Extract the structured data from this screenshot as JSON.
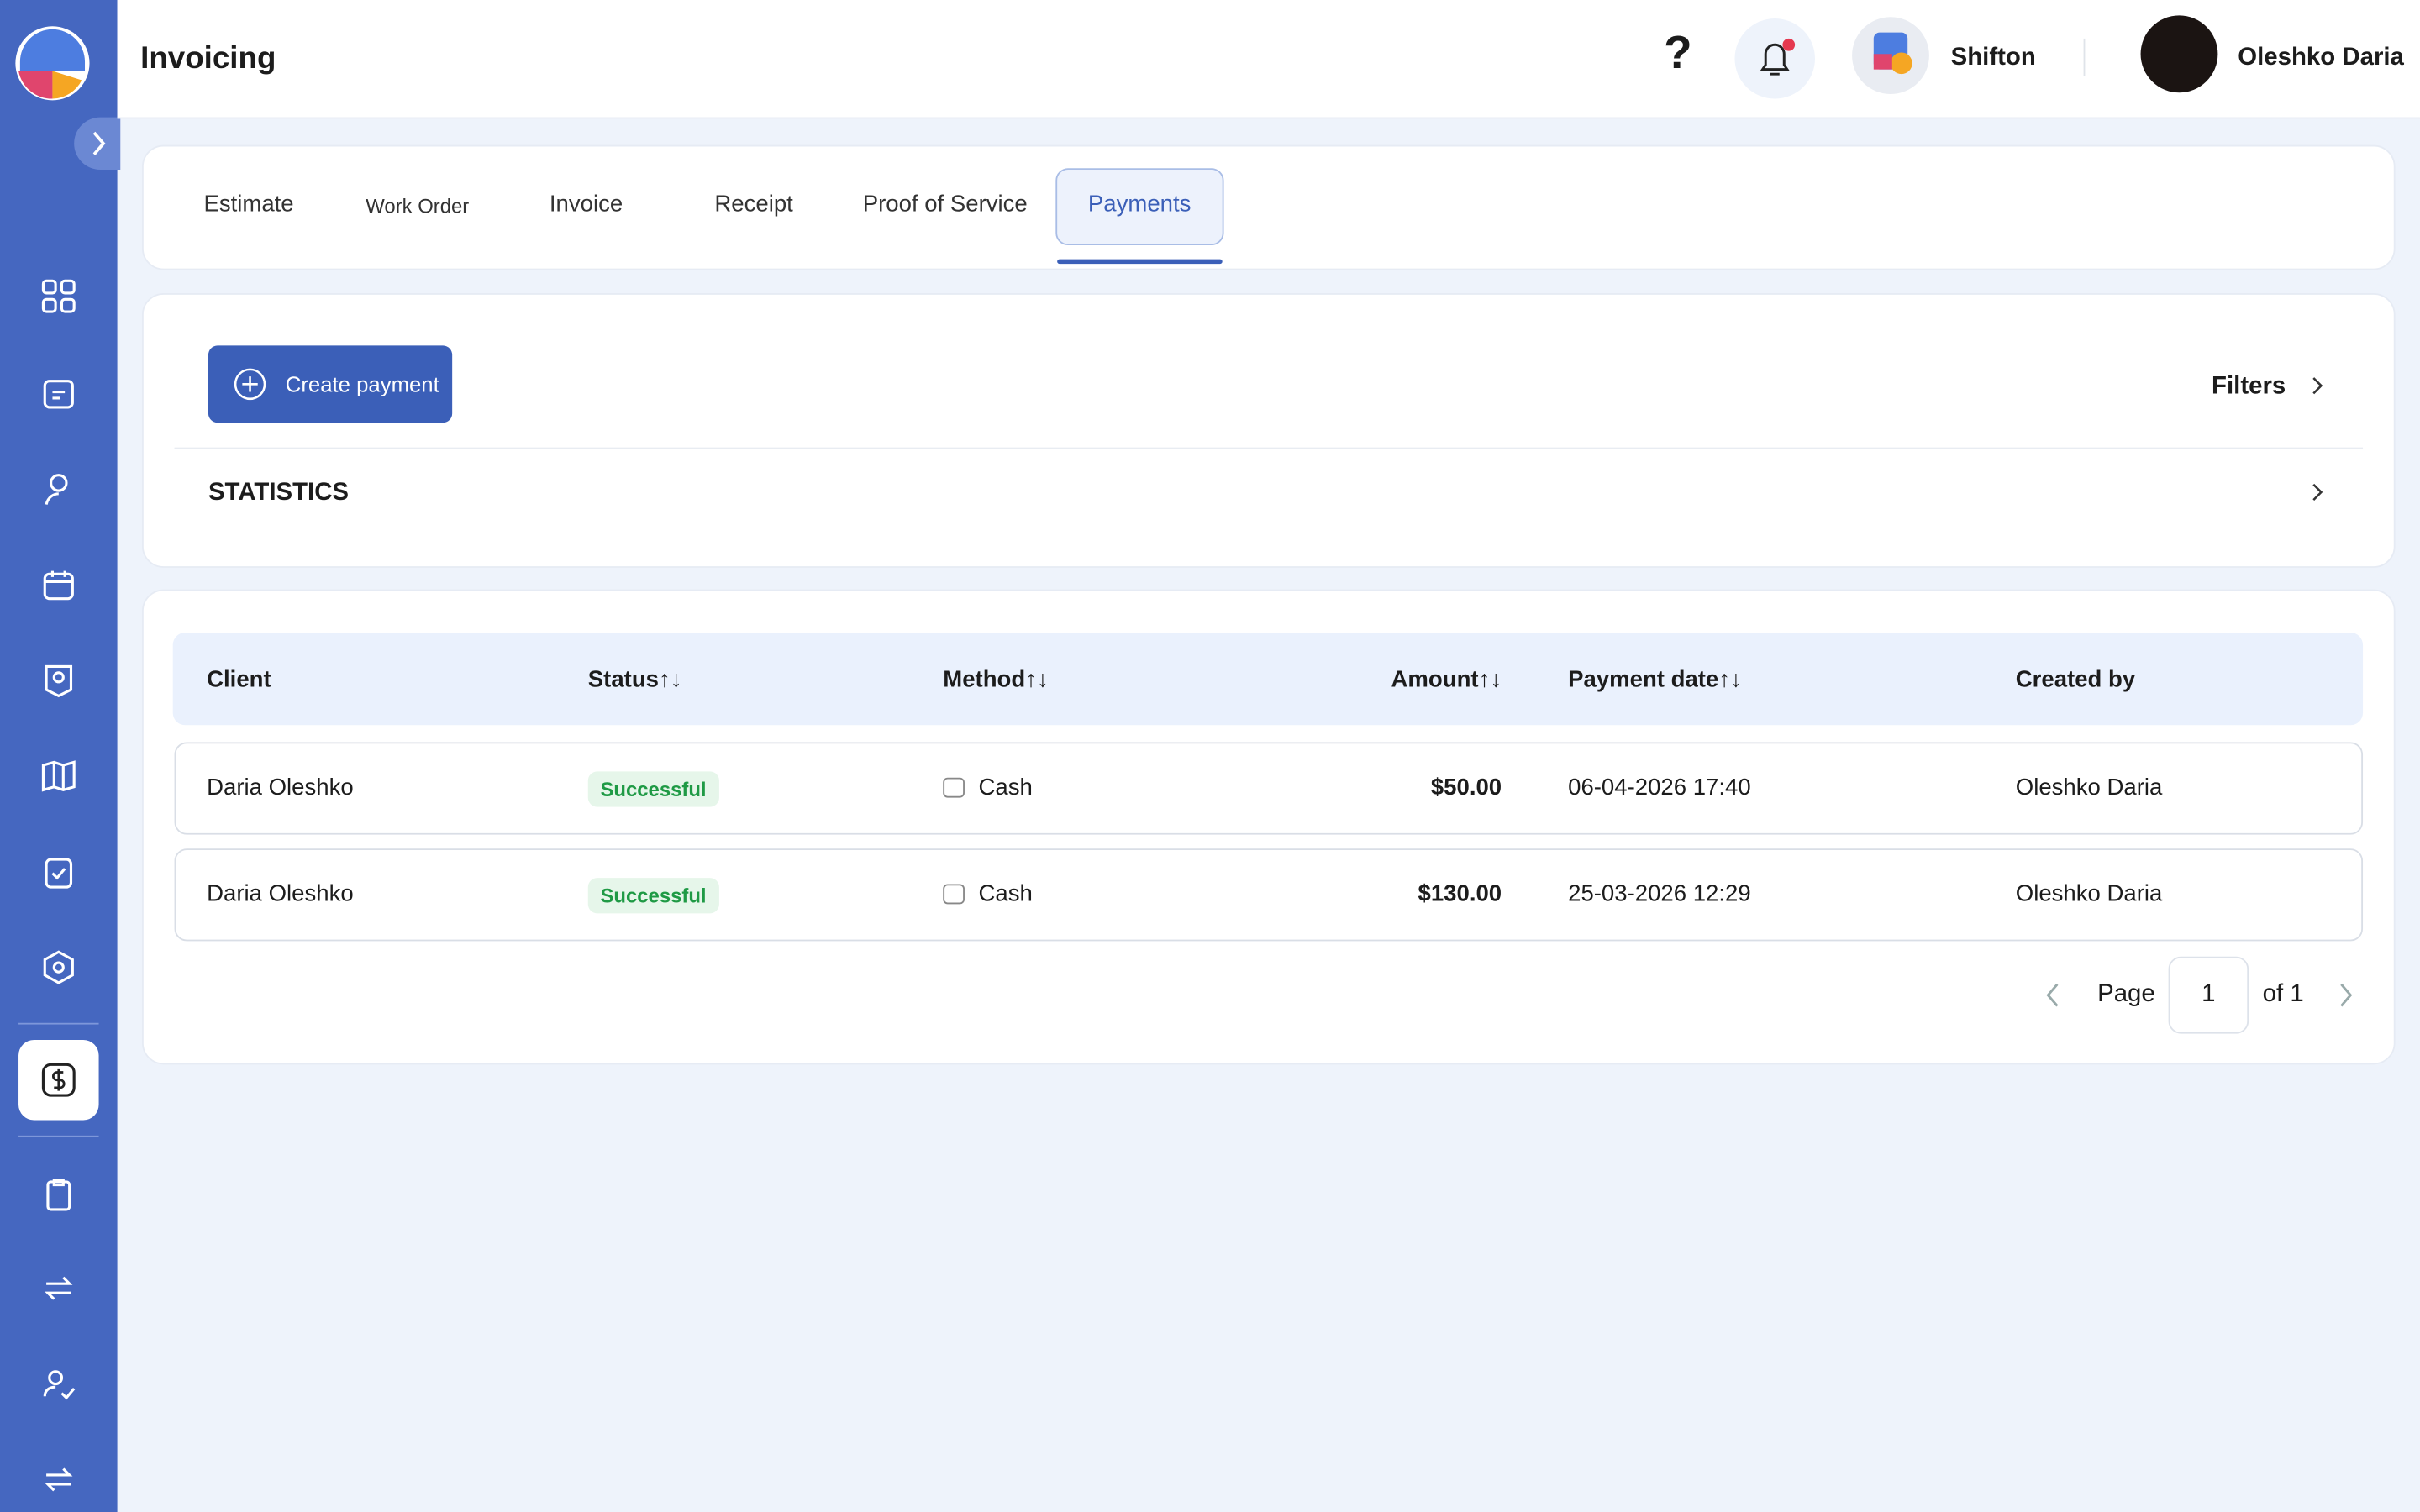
{
  "header": {
    "title": "Invoicing",
    "help": "?",
    "company": "Shifton",
    "user": "Oleshko Daria"
  },
  "tabs": {
    "items": [
      "Estimate",
      "Work Order",
      "Invoice",
      "Receipt",
      "Proof of Service",
      "Payments"
    ],
    "active": "Payments"
  },
  "toolbar": {
    "create_button": "Create payment",
    "filters": "Filters",
    "statistics": "STATISTICS"
  },
  "table": {
    "columns": [
      "Client",
      "Status↑↓",
      "Method↑↓",
      "Amount↑↓",
      "Payment date↑↓",
      "Created by"
    ],
    "rows": [
      [
        "Daria Oleshko",
        "Successful",
        "Cash",
        "$50.00",
        "06-04-2026 17:40",
        "Oleshko Daria"
      ],
      [
        "Daria Oleshko",
        "Successful",
        "Cash",
        "$130.00",
        "25-03-2026 12:29",
        "Oleshko Daria"
      ]
    ]
  },
  "pagination": {
    "page_label": "Page",
    "page": "1",
    "of_label": "of 1"
  }
}
